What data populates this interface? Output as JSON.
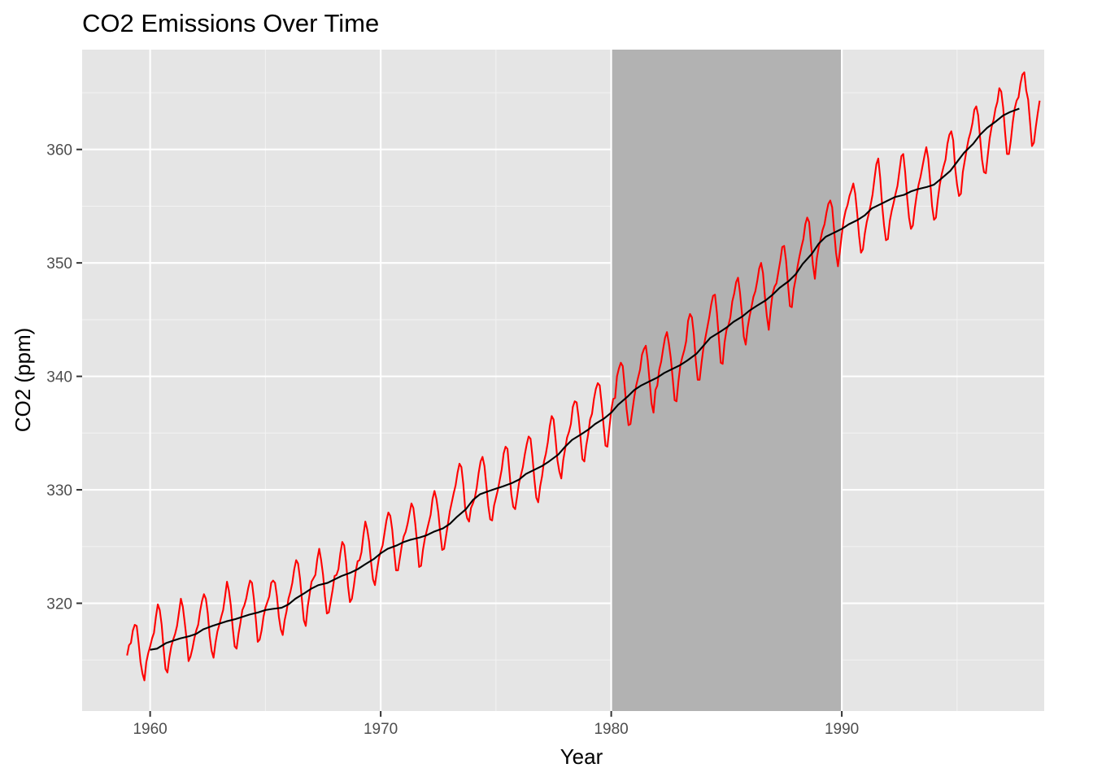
{
  "colors": {
    "panel_background": "#e5e5e5",
    "grid_major": "#ffffff",
    "grid_minor": "#f2f2f2",
    "highlight_band": "#b2b2b2",
    "series_monthly": "#ff0000",
    "series_trend": "#000000",
    "tick_label": "#4d4d4d",
    "tick_mark": "#333333"
  },
  "chart_data": {
    "type": "line",
    "title": "CO2 Emissions Over Time",
    "xlabel": "Year",
    "ylabel": "CO2 (ppm)",
    "xlim": [
      1957.05,
      1998.78
    ],
    "ylim": [
      310.5,
      368.8
    ],
    "x_ticks": [
      1960,
      1970,
      1980,
      1990
    ],
    "x_tick_labels": [
      "1960",
      "1970",
      "1980",
      "1990"
    ],
    "x_minor_ticks": [
      1965,
      1975,
      1985,
      1995
    ],
    "y_ticks": [
      320,
      330,
      340,
      350,
      360
    ],
    "y_tick_labels": [
      "320",
      "330",
      "340",
      "350",
      "360"
    ],
    "y_minor_ticks": [
      315,
      325,
      335,
      345,
      355,
      365
    ],
    "grid": true,
    "legend": "none",
    "highlight_band": {
      "x_start": 1980,
      "x_end": 1990
    },
    "series": [
      {
        "style": "monthly",
        "x_start": 1959.0,
        "x_step": 0.083333,
        "values": [
          315.4,
          316.3,
          316.5,
          317.6,
          318.1,
          318.0,
          316.5,
          314.8,
          313.8,
          313.2,
          314.8,
          315.6,
          316.2,
          316.9,
          317.4,
          318.8,
          319.9,
          319.4,
          318.1,
          316.0,
          314.2,
          313.9,
          315.2,
          316.2,
          316.8,
          317.3,
          318.0,
          319.2,
          320.4,
          319.7,
          318.3,
          316.8,
          314.9,
          315.3,
          316.0,
          316.9,
          317.6,
          318.1,
          319.3,
          320.2,
          320.8,
          320.4,
          319.1,
          317.1,
          315.8,
          315.2,
          316.5,
          317.5,
          318.1,
          318.8,
          319.4,
          320.6,
          321.9,
          321.1,
          319.8,
          317.8,
          316.2,
          316.0,
          317.3,
          318.3,
          319.4,
          319.8,
          320.4,
          321.3,
          322.0,
          321.8,
          320.4,
          318.6,
          316.6,
          316.8,
          317.6,
          318.8,
          319.6,
          320.1,
          320.6,
          321.8,
          322.0,
          321.8,
          320.6,
          318.8,
          317.7,
          317.2,
          318.5,
          319.3,
          320.4,
          321.0,
          321.8,
          323.0,
          323.8,
          323.5,
          322.2,
          320.3,
          318.5,
          318.0,
          319.7,
          320.8,
          321.9,
          322.2,
          322.5,
          323.9,
          324.8,
          323.8,
          322.5,
          320.6,
          319.1,
          319.2,
          320.2,
          321.2,
          322.4,
          322.5,
          323.0,
          324.4,
          325.4,
          325.1,
          323.6,
          321.5,
          320.1,
          320.4,
          321.5,
          322.8,
          323.7,
          323.8,
          324.5,
          326.0,
          327.2,
          326.5,
          325.4,
          323.6,
          322.1,
          321.6,
          322.8,
          323.9,
          324.6,
          325.1,
          326.2,
          327.3,
          328.0,
          327.7,
          326.5,
          324.6,
          322.9,
          322.9,
          324.0,
          325.1,
          325.9,
          326.3,
          327.0,
          327.9,
          328.8,
          328.4,
          327.0,
          325.2,
          323.2,
          323.3,
          324.7,
          325.7,
          326.4,
          327.1,
          327.8,
          329.2,
          329.9,
          329.2,
          328.0,
          326.2,
          324.7,
          324.8,
          325.9,
          327.0,
          328.1,
          328.9,
          329.7,
          330.4,
          331.5,
          332.3,
          332.0,
          330.5,
          328.3,
          327.5,
          327.2,
          328.4,
          328.8,
          329.3,
          330.2,
          331.5,
          332.5,
          332.9,
          332.1,
          330.4,
          328.6,
          327.4,
          327.3,
          328.6,
          329.3,
          330.0,
          330.9,
          331.8,
          333.2,
          333.8,
          333.6,
          331.6,
          329.6,
          328.5,
          328.3,
          329.4,
          330.6,
          331.3,
          332.0,
          333.1,
          334.0,
          334.7,
          334.5,
          332.9,
          330.9,
          329.3,
          328.9,
          330.3,
          331.2,
          332.5,
          333.2,
          334.2,
          335.6,
          336.5,
          336.2,
          334.5,
          332.6,
          331.6,
          331.0,
          332.6,
          333.6,
          334.6,
          335.1,
          335.8,
          337.3,
          337.8,
          337.7,
          336.4,
          334.6,
          332.7,
          332.5,
          333.9,
          334.9,
          336.2,
          336.7,
          338.0,
          338.9,
          339.4,
          339.2,
          337.6,
          335.7,
          333.9,
          333.8,
          335.4,
          337.0,
          338.0,
          338.1,
          340.0,
          340.7,
          341.2,
          340.9,
          339.1,
          337.1,
          335.7,
          335.8,
          337.0,
          338.2,
          339.2,
          339.9,
          340.6,
          341.9,
          342.4,
          342.7,
          341.4,
          339.5,
          337.6,
          336.8,
          338.8,
          339.2,
          340.6,
          341.3,
          342.4,
          343.4,
          343.9,
          342.9,
          341.6,
          339.8,
          337.9,
          337.8,
          339.6,
          341.0,
          341.7,
          342.3,
          343.1,
          344.9,
          345.5,
          345.2,
          343.7,
          341.4,
          339.7,
          339.7,
          341.2,
          342.5,
          343.4,
          344.3,
          345.2,
          346.3,
          347.1,
          347.2,
          345.6,
          343.4,
          341.2,
          341.1,
          343.0,
          344.1,
          344.5,
          345.2,
          346.6,
          347.3,
          348.3,
          348.7,
          347.4,
          345.6,
          343.5,
          342.8,
          344.3,
          345.3,
          346.1,
          347.0,
          347.5,
          348.4,
          349.5,
          350.0,
          349.1,
          347.0,
          345.3,
          344.1,
          345.9,
          347.3,
          347.9,
          348.2,
          349.2,
          350.2,
          351.4,
          351.5,
          350.2,
          348.1,
          346.2,
          346.1,
          347.7,
          348.6,
          349.7,
          350.6,
          351.4,
          352.1,
          353.4,
          354.0,
          353.6,
          351.6,
          349.8,
          348.6,
          350.4,
          351.4,
          352.1,
          352.9,
          353.4,
          354.4,
          355.2,
          355.5,
          354.9,
          352.9,
          350.9,
          349.7,
          351.0,
          352.5,
          353.8,
          354.6,
          355.1,
          355.9,
          356.4,
          357.0,
          356.1,
          354.4,
          352.4,
          350.9,
          351.2,
          352.6,
          353.6,
          354.3,
          355.1,
          356.0,
          357.4,
          358.7,
          359.2,
          357.5,
          355.1,
          353.3,
          352.0,
          352.1,
          353.7,
          354.6,
          355.3,
          356.1,
          356.8,
          358.1,
          359.4,
          359.6,
          358.0,
          355.8,
          354.0,
          353.0,
          353.3,
          354.8,
          356.0,
          356.9,
          357.6,
          358.5,
          359.4,
          360.2,
          359.2,
          357.2,
          355.0,
          353.8,
          354.0,
          355.6,
          356.9,
          357.8,
          358.5,
          359.1,
          360.5,
          361.3,
          361.6,
          360.8,
          358.4,
          356.9,
          355.9,
          356.1,
          358.0,
          359.0,
          360.0,
          360.9,
          361.5,
          362.3,
          363.5,
          363.8,
          363.0,
          361.0,
          359.1,
          358.0,
          357.9,
          359.5,
          361.0,
          362.0,
          362.6,
          363.6,
          364.2,
          365.4,
          365.1,
          363.7,
          361.5,
          359.6,
          359.6,
          360.8,
          362.4,
          363.6,
          364.3,
          364.6,
          365.8,
          366.6,
          366.8,
          365.2,
          364.4,
          362.4,
          360.3,
          360.6,
          362.0,
          363.2,
          364.3
        ]
      },
      {
        "style": "trend",
        "x": [
          1960.0,
          1960.3,
          1960.7,
          1961.0,
          1961.3,
          1961.7,
          1962.0,
          1962.3,
          1962.7,
          1963.0,
          1963.3,
          1963.7,
          1964.0,
          1964.3,
          1964.7,
          1965.0,
          1965.3,
          1965.7,
          1966.0,
          1966.3,
          1966.7,
          1967.0,
          1967.3,
          1967.7,
          1968.0,
          1968.3,
          1968.7,
          1969.0,
          1969.3,
          1969.7,
          1970.0,
          1970.3,
          1970.7,
          1971.0,
          1971.3,
          1971.7,
          1972.0,
          1972.3,
          1972.7,
          1973.0,
          1973.3,
          1973.7,
          1974.0,
          1974.3,
          1974.7,
          1975.0,
          1975.3,
          1975.7,
          1976.0,
          1976.3,
          1976.7,
          1977.0,
          1977.3,
          1977.7,
          1978.0,
          1978.3,
          1978.7,
          1979.0,
          1979.3,
          1979.7,
          1980.0,
          1980.3,
          1980.7,
          1981.0,
          1981.3,
          1981.7,
          1982.0,
          1982.3,
          1982.7,
          1983.0,
          1983.3,
          1983.7,
          1984.0,
          1984.3,
          1984.7,
          1985.0,
          1985.3,
          1985.7,
          1986.0,
          1986.3,
          1986.7,
          1987.0,
          1987.3,
          1987.7,
          1988.0,
          1988.3,
          1988.7,
          1989.0,
          1989.3,
          1989.7,
          1990.0,
          1990.3,
          1990.7,
          1991.0,
          1991.3,
          1991.7,
          1992.0,
          1992.3,
          1992.7,
          1993.0,
          1993.3,
          1993.7,
          1994.0,
          1994.3,
          1994.7,
          1995.0,
          1995.3,
          1995.7,
          1996.0,
          1996.3,
          1996.7,
          1997.0,
          1997.3,
          1997.7
        ],
        "values": [
          315.9,
          316.0,
          316.5,
          316.7,
          316.9,
          317.1,
          317.3,
          317.7,
          318.0,
          318.2,
          318.4,
          318.6,
          318.8,
          319.0,
          319.2,
          319.4,
          319.5,
          319.6,
          319.9,
          320.4,
          320.9,
          321.3,
          321.6,
          321.8,
          322.1,
          322.4,
          322.7,
          323.0,
          323.4,
          323.9,
          324.4,
          324.8,
          325.1,
          325.4,
          325.6,
          325.8,
          326.0,
          326.3,
          326.6,
          327.0,
          327.6,
          328.3,
          329.1,
          329.6,
          329.9,
          330.1,
          330.3,
          330.6,
          330.9,
          331.4,
          331.8,
          332.1,
          332.5,
          333.1,
          333.8,
          334.4,
          334.9,
          335.3,
          335.8,
          336.3,
          336.8,
          337.5,
          338.2,
          338.8,
          339.2,
          339.6,
          339.9,
          340.3,
          340.7,
          341.0,
          341.4,
          342.0,
          342.7,
          343.4,
          343.9,
          344.3,
          344.8,
          345.3,
          345.8,
          346.2,
          346.7,
          347.2,
          347.8,
          348.4,
          349.0,
          349.9,
          350.8,
          351.7,
          352.3,
          352.7,
          353.0,
          353.4,
          353.8,
          354.2,
          354.8,
          355.2,
          355.5,
          355.8,
          356.0,
          356.3,
          356.5,
          356.7,
          356.9,
          357.4,
          358.1,
          358.9,
          359.7,
          360.5,
          361.3,
          361.9,
          362.5,
          363.0,
          363.3,
          363.6
        ]
      }
    ]
  }
}
